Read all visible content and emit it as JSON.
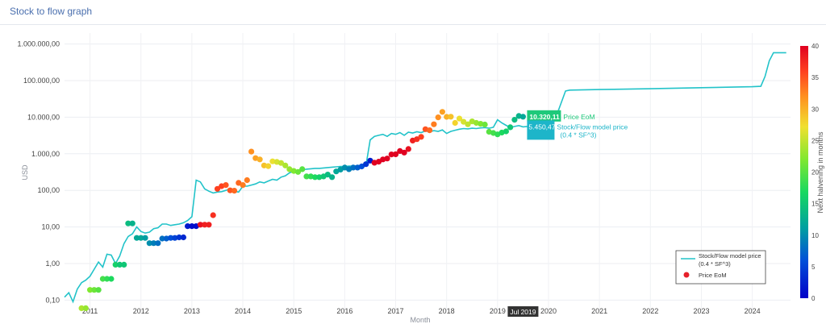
{
  "header": {
    "title": "Stock to flow graph"
  },
  "chart_data": {
    "type": "scatter",
    "title": "",
    "xlabel": "Month",
    "ylabel": "USD",
    "y_scale": "log",
    "ylim": [
      0.05,
      2000000
    ],
    "xlim": [
      "2010-07",
      "2024-10"
    ],
    "x_ticks": [
      "2011",
      "2012",
      "2013",
      "2014",
      "2015",
      "2016",
      "2017",
      "2018",
      "2019",
      "2020",
      "2021",
      "2022",
      "2023",
      "2024"
    ],
    "y_ticks": [
      {
        "value": 0.1,
        "label": "0,10"
      },
      {
        "value": 1,
        "label": "1,00"
      },
      {
        "value": 10,
        "label": "10,00"
      },
      {
        "value": 100,
        "label": "100,00"
      },
      {
        "value": 1000,
        "label": "1.000,00"
      },
      {
        "value": 10000,
        "label": "10.000,00"
      },
      {
        "value": 100000,
        "label": "100.000,00"
      },
      {
        "value": 1000000,
        "label": "1.000.000,00"
      }
    ],
    "grid": true,
    "legend": {
      "placement": "bottom-right",
      "entries": [
        {
          "label": "Stock/Flow model price",
          "label2": "(0.4 * SF^3)",
          "color": "#22c3c9"
        },
        {
          "label": "Price EoM",
          "color": "#e6202a"
        }
      ]
    },
    "colorbar": {
      "title": "Next halvening in months",
      "range": [
        0,
        40
      ],
      "ticks": [
        "0",
        "5",
        "10",
        "15",
        "20",
        "25",
        "30",
        "35",
        "40"
      ]
    },
    "hover": {
      "x_label": "Jul 2019",
      "x": "2019-07",
      "price_value": "10.320,11",
      "price_label": "Price EoM",
      "price_color": "#1ec97a",
      "model_value": "5.450,47",
      "model_label": "Stock/Flow model price",
      "model_label2": "(0.4 * SF^3)",
      "model_color": "#1db5c9"
    },
    "series": [
      {
        "name": "Stock/Flow model price",
        "mode": "line",
        "color": "#22c3c9",
        "points": [
          [
            "2010-07",
            0.12
          ],
          [
            "2010-08",
            0.16
          ],
          [
            "2010-09",
            0.09
          ],
          [
            "2010-10",
            0.2
          ],
          [
            "2010-11",
            0.3
          ],
          [
            "2010-12",
            0.35
          ],
          [
            "2011-01",
            0.45
          ],
          [
            "2011-02",
            0.7
          ],
          [
            "2011-03",
            1.1
          ],
          [
            "2011-04",
            0.8
          ],
          [
            "2011-05",
            1.8
          ],
          [
            "2011-06",
            1.7
          ],
          [
            "2011-07",
            1.0
          ],
          [
            "2011-08",
            1.6
          ],
          [
            "2011-09",
            3.5
          ],
          [
            "2011-10",
            5.5
          ],
          [
            "2011-11",
            6.5
          ],
          [
            "2011-12",
            10
          ],
          [
            "2012-01",
            7.5
          ],
          [
            "2012-02",
            6.8
          ],
          [
            "2012-03",
            7.2
          ],
          [
            "2012-04",
            9
          ],
          [
            "2012-05",
            9.5
          ],
          [
            "2012-06",
            12
          ],
          [
            "2012-07",
            12
          ],
          [
            "2012-08",
            11
          ],
          [
            "2012-09",
            11.5
          ],
          [
            "2012-10",
            12
          ],
          [
            "2012-11",
            13
          ],
          [
            "2012-12",
            15
          ],
          [
            "2013-01",
            19
          ],
          [
            "2013-02",
            190
          ],
          [
            "2013-03",
            170
          ],
          [
            "2013-04",
            110
          ],
          [
            "2013-05",
            95
          ],
          [
            "2013-06",
            85
          ],
          [
            "2013-07",
            90
          ],
          [
            "2013-08",
            92
          ],
          [
            "2013-09",
            100
          ],
          [
            "2013-10",
            110
          ],
          [
            "2013-11",
            95
          ],
          [
            "2013-12",
            90
          ],
          [
            "2014-01",
            130
          ],
          [
            "2014-02",
            130
          ],
          [
            "2014-03",
            140
          ],
          [
            "2014-04",
            150
          ],
          [
            "2014-05",
            170
          ],
          [
            "2014-06",
            160
          ],
          [
            "2014-07",
            180
          ],
          [
            "2014-08",
            200
          ],
          [
            "2014-09",
            190
          ],
          [
            "2014-10",
            230
          ],
          [
            "2014-11",
            250
          ],
          [
            "2014-12",
            300
          ],
          [
            "2015-01",
            340
          ],
          [
            "2015-02",
            330
          ],
          [
            "2015-03",
            360
          ],
          [
            "2015-04",
            380
          ],
          [
            "2015-05",
            390
          ],
          [
            "2015-06",
            400
          ],
          [
            "2015-07",
            400
          ],
          [
            "2015-08",
            410
          ],
          [
            "2015-09",
            420
          ],
          [
            "2015-10",
            430
          ],
          [
            "2015-11",
            440
          ],
          [
            "2015-12",
            450
          ],
          [
            "2016-01",
            450
          ],
          [
            "2016-02",
            460
          ],
          [
            "2016-03",
            460
          ],
          [
            "2016-04",
            470
          ],
          [
            "2016-05",
            480
          ],
          [
            "2016-06",
            480
          ],
          [
            "2016-07",
            2400
          ],
          [
            "2016-08",
            3000
          ],
          [
            "2016-09",
            3200
          ],
          [
            "2016-10",
            3400
          ],
          [
            "2016-11",
            3000
          ],
          [
            "2016-12",
            3600
          ],
          [
            "2017-01",
            3400
          ],
          [
            "2017-02",
            3800
          ],
          [
            "2017-03",
            3200
          ],
          [
            "2017-04",
            3900
          ],
          [
            "2017-05",
            3700
          ],
          [
            "2017-06",
            4000
          ],
          [
            "2017-07",
            3800
          ],
          [
            "2017-08",
            4200
          ],
          [
            "2017-09",
            4000
          ],
          [
            "2017-10",
            4300
          ],
          [
            "2017-11",
            4100
          ],
          [
            "2017-12",
            4500
          ],
          [
            "2018-01",
            3600
          ],
          [
            "2018-02",
            4100
          ],
          [
            "2018-03",
            4400
          ],
          [
            "2018-04",
            4700
          ],
          [
            "2018-05",
            4900
          ],
          [
            "2018-06",
            4800
          ],
          [
            "2018-07",
            5000
          ],
          [
            "2018-08",
            4900
          ],
          [
            "2018-09",
            5100
          ],
          [
            "2018-10",
            5200
          ],
          [
            "2018-11",
            5000
          ],
          [
            "2018-12",
            5300
          ],
          [
            "2019-01",
            8500
          ],
          [
            "2019-02",
            7000
          ],
          [
            "2019-03",
            6000
          ],
          [
            "2019-04",
            5200
          ],
          [
            "2019-05",
            5600
          ],
          [
            "2019-06",
            5900
          ],
          [
            "2019-07",
            5450
          ],
          [
            "2019-08",
            5600
          ],
          [
            "2019-09",
            5800
          ],
          [
            "2019-10",
            5600
          ],
          [
            "2019-11",
            5700
          ],
          [
            "2019-12",
            5900
          ],
          [
            "2020-01",
            6200
          ],
          [
            "2020-02",
            6500
          ],
          [
            "2020-03",
            12000
          ],
          [
            "2020-04",
            25000
          ],
          [
            "2020-05",
            52000
          ],
          [
            "2020-06",
            55000
          ],
          [
            "2021-01",
            57000
          ],
          [
            "2022-01",
            60000
          ],
          [
            "2023-01",
            64000
          ],
          [
            "2024-01",
            68000
          ],
          [
            "2024-03",
            70000
          ],
          [
            "2024-04",
            130000
          ],
          [
            "2024-05",
            350000
          ],
          [
            "2024-06",
            580000
          ],
          [
            "2024-09",
            580000
          ]
        ]
      },
      {
        "name": "Price EoM",
        "mode": "markers",
        "color_scale": "jet",
        "color_value": "Next halvening in months",
        "points": [
          [
            "2010-11",
            0.06,
            24
          ],
          [
            "2010-12",
            0.06,
            23
          ],
          [
            "2011-01",
            0.19,
            22
          ],
          [
            "2011-02",
            0.19,
            21
          ],
          [
            "2011-03",
            0.19,
            20
          ],
          [
            "2011-04",
            0.38,
            19
          ],
          [
            "2011-05",
            0.38,
            18
          ],
          [
            "2011-06",
            0.38,
            17
          ],
          [
            "2011-07",
            0.93,
            16
          ],
          [
            "2011-08",
            0.93,
            15
          ],
          [
            "2011-09",
            0.93,
            15
          ],
          [
            "2011-10",
            12.5,
            14
          ],
          [
            "2011-11",
            12.5,
            13
          ],
          [
            "2011-12",
            5.0,
            12
          ],
          [
            "2012-01",
            5.0,
            12
          ],
          [
            "2012-02",
            5.0,
            11
          ],
          [
            "2012-03",
            3.6,
            10
          ],
          [
            "2012-04",
            3.6,
            9
          ],
          [
            "2012-05",
            3.6,
            8
          ],
          [
            "2012-06",
            4.8,
            8
          ],
          [
            "2012-07",
            4.8,
            7
          ],
          [
            "2012-08",
            5.0,
            6
          ],
          [
            "2012-09",
            5.0,
            5
          ],
          [
            "2012-10",
            5.2,
            4
          ],
          [
            "2012-11",
            5.2,
            3
          ],
          [
            "2012-12",
            10.5,
            2
          ],
          [
            "2013-01",
            10.5,
            1
          ],
          [
            "2013-02",
            10.5,
            1
          ],
          [
            "2013-03",
            11.5,
            39
          ],
          [
            "2013-04",
            11.5,
            38
          ],
          [
            "2013-05",
            11.5,
            38
          ],
          [
            "2013-06",
            21,
            37
          ],
          [
            "2013-07",
            110,
            36
          ],
          [
            "2013-08",
            130,
            36
          ],
          [
            "2013-09",
            140,
            35
          ],
          [
            "2013-10",
            100,
            35
          ],
          [
            "2013-11",
            98,
            34
          ],
          [
            "2013-12",
            160,
            34
          ],
          [
            "2014-01",
            140,
            33
          ],
          [
            "2014-02",
            190,
            33
          ],
          [
            "2014-03",
            1150,
            32
          ],
          [
            "2014-04",
            760,
            31
          ],
          [
            "2014-05",
            700,
            30
          ],
          [
            "2014-06",
            480,
            29
          ],
          [
            "2014-07",
            460,
            28
          ],
          [
            "2014-08",
            620,
            27
          ],
          [
            "2014-09",
            600,
            26
          ],
          [
            "2014-10",
            560,
            25
          ],
          [
            "2014-11",
            480,
            24
          ],
          [
            "2014-12",
            380,
            23
          ],
          [
            "2015-01",
            340,
            22
          ],
          [
            "2015-02",
            320,
            21
          ],
          [
            "2015-03",
            380,
            20
          ],
          [
            "2015-04",
            240,
            19
          ],
          [
            "2015-05",
            240,
            18
          ],
          [
            "2015-06",
            230,
            17
          ],
          [
            "2015-07",
            230,
            16
          ],
          [
            "2015-08",
            240,
            15
          ],
          [
            "2015-09",
            270,
            14
          ],
          [
            "2015-10",
            230,
            13
          ],
          [
            "2015-11",
            330,
            12
          ],
          [
            "2015-12",
            370,
            11
          ],
          [
            "2016-01",
            420,
            10
          ],
          [
            "2016-02",
            380,
            9
          ],
          [
            "2016-03",
            420,
            8
          ],
          [
            "2016-04",
            420,
            7
          ],
          [
            "2016-05",
            450,
            6
          ],
          [
            "2016-06",
            520,
            4
          ],
          [
            "2016-07",
            650,
            2
          ],
          [
            "2016-08",
            570,
            47
          ],
          [
            "2016-09",
            610,
            46
          ],
          [
            "2016-10",
            700,
            45
          ],
          [
            "2016-11",
            740,
            44
          ],
          [
            "2016-12",
            960,
            43
          ],
          [
            "2017-01",
            970,
            42
          ],
          [
            "2017-02",
            1190,
            41
          ],
          [
            "2017-03",
            1080,
            40
          ],
          [
            "2017-04",
            1350,
            39
          ],
          [
            "2017-05",
            2300,
            38
          ],
          [
            "2017-06",
            2500,
            37
          ],
          [
            "2017-07",
            2900,
            36
          ],
          [
            "2017-08",
            4700,
            35
          ],
          [
            "2017-09",
            4400,
            34
          ],
          [
            "2017-10",
            6400,
            33
          ],
          [
            "2017-11",
            9900,
            32
          ],
          [
            "2017-12",
            14000,
            31
          ],
          [
            "2018-01",
            10200,
            30
          ],
          [
            "2018-02",
            10300,
            29
          ],
          [
            "2018-03",
            7000,
            28
          ],
          [
            "2018-04",
            9200,
            27
          ],
          [
            "2018-05",
            7500,
            26
          ],
          [
            "2018-06",
            6400,
            25
          ],
          [
            "2018-07",
            7700,
            24
          ],
          [
            "2018-08",
            7000,
            23
          ],
          [
            "2018-09",
            6600,
            22
          ],
          [
            "2018-10",
            6300,
            21
          ],
          [
            "2018-11",
            4000,
            20
          ],
          [
            "2018-12",
            3700,
            19
          ],
          [
            "2019-01",
            3400,
            18
          ],
          [
            "2019-02",
            3800,
            17
          ],
          [
            "2019-03",
            4100,
            16
          ],
          [
            "2019-04",
            5300,
            15
          ],
          [
            "2019-05",
            8500,
            14
          ],
          [
            "2019-06",
            10800,
            13
          ],
          [
            "2019-07",
            10320,
            12
          ]
        ]
      }
    ]
  }
}
